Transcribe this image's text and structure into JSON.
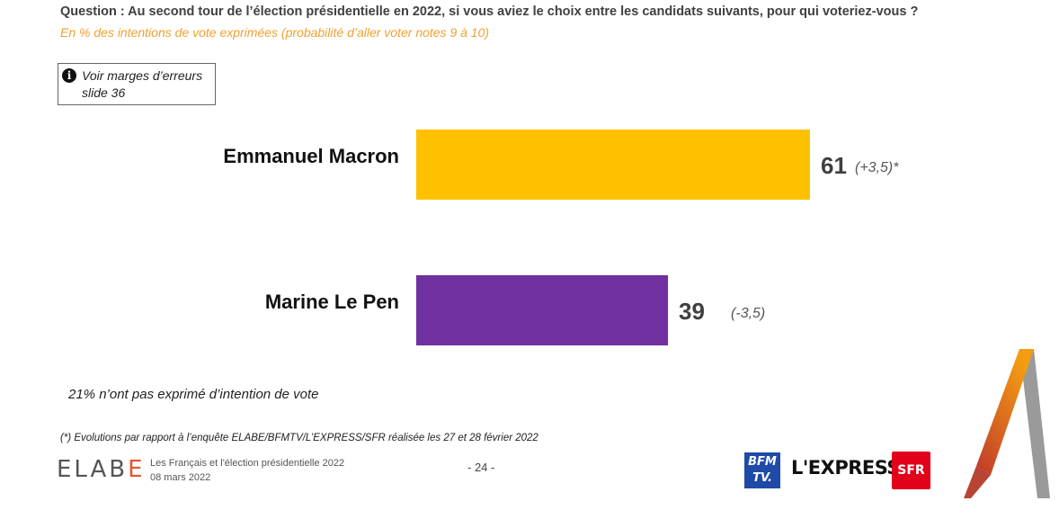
{
  "question": "Question : Au second tour de l’élection présidentielle en 2022, si vous aviez le choix entre les candidats suivants, pour qui voteriez-vous ?",
  "subtitle": "En % des intentions de vote exprimées (probabilité d’aller voter notes 9 à 10)",
  "info_box": {
    "icon": "info-icon",
    "text": "Voir marges d’erreurs slide 36"
  },
  "chart_data": {
    "type": "bar",
    "orientation": "horizontal",
    "categories": [
      "Emmanuel Macron",
      "Marine Le Pen"
    ],
    "values": [
      61,
      39
    ],
    "evolutions": [
      "(+3,5)*",
      "(-3,5)"
    ],
    "colors": [
      "#FFC000",
      "#7030A0"
    ],
    "xlim": [
      0,
      61
    ]
  },
  "note": "21% n’ont pas exprimé d’intention de vote",
  "footnote": "(*) Evolutions par rapport à l’enquête ELABE/BFMTV/L’EXPRESS/SFR réalisée les 27 et 28 février 2022",
  "footer": {
    "logo_text": "ELABE",
    "title": "Les Français et l'élection présidentielle 2022",
    "date": "08 mars 2022",
    "page": "- 24 -",
    "partners": [
      "BFM TV.",
      "L'EXPRESS",
      "SFR"
    ]
  }
}
